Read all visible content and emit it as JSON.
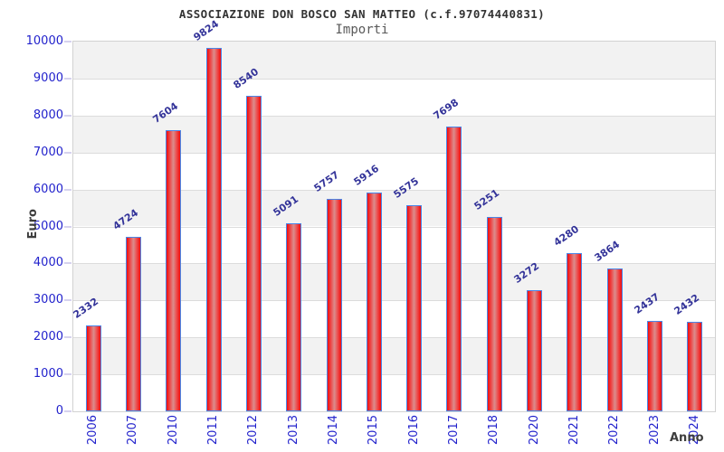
{
  "chart_data": {
    "type": "bar",
    "title": "ASSOCIAZIONE DON BOSCO SAN MATTEO (c.f.97074440831)",
    "subtitle": "Importi",
    "xlabel": "Anno",
    "ylabel": "Euro",
    "categories": [
      "2006",
      "2007",
      "2010",
      "2011",
      "2012",
      "2013",
      "2014",
      "2015",
      "2016",
      "2017",
      "2018",
      "2020",
      "2021",
      "2022",
      "2023",
      "2024"
    ],
    "values": [
      2332,
      4724,
      7604,
      9824,
      8540,
      5091,
      5757,
      5916,
      5575,
      7698,
      5251,
      3272,
      4280,
      3864,
      2437,
      2432
    ],
    "ylim": [
      0,
      10000
    ],
    "ytick_labels": [
      "0",
      "1000",
      "2000",
      "3000",
      "4000",
      "5000",
      "6000",
      "7000",
      "8000",
      "9000",
      "10000"
    ],
    "grid": true,
    "legend": "none",
    "layout": {
      "bands_alternate_from_top": "gray-first"
    },
    "colors": {
      "bar_fill_edge": "#f20c0c",
      "bar_fill_mid": "#db8d8d",
      "bar_border": "#4a86e8",
      "axis_tick_text": "#2222cc",
      "value_label_text": "#333399",
      "band_alt": "#f2f2f2",
      "grid_line": "#dcdcdc",
      "plot_border": "#d2d2d2",
      "tick_mark": "#d6d2ee",
      "axis_title_text": "#3d3d3d",
      "title_text": "#333333",
      "subtitle_text": "#5a5a5a"
    }
  }
}
